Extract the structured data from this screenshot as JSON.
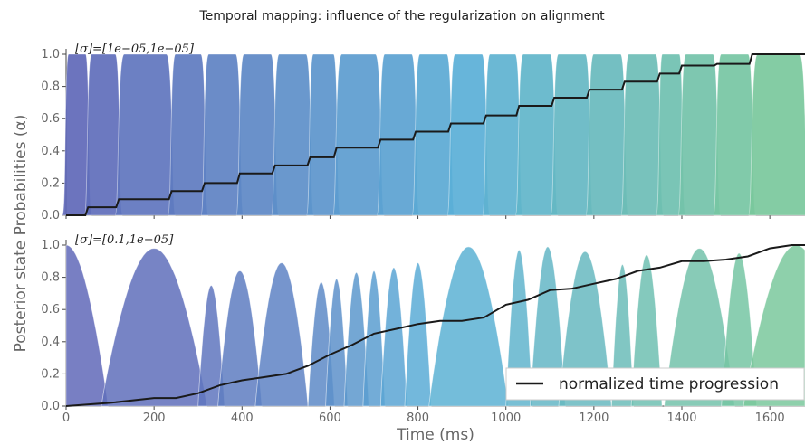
{
  "title": "Temporal mapping: influence of the regularization on alignment",
  "ylabel": "Posterior state Probabilities (α)",
  "xlabel": "Time (ms)",
  "legend": {
    "label": "normalized time progression"
  },
  "colors": {
    "progression_line": "#1a1a1a"
  },
  "chart_data": [
    {
      "type": "area",
      "annotation": "⌊σ⌋=[1e−05,1e−05]",
      "xlim": [
        0,
        1680
      ],
      "ylim": [
        0,
        1.0
      ],
      "yticks": [
        "0.0",
        "0.2",
        "0.4",
        "0.6",
        "0.8",
        "1.0"
      ],
      "xticks": [],
      "state_boundaries_ms": [
        0,
        50,
        120,
        240,
        315,
        395,
        475,
        555,
        615,
        715,
        795,
        875,
        955,
        1030,
        1110,
        1190,
        1270,
        1350,
        1400,
        1480,
        1560,
        1680
      ],
      "progression": {
        "name": "normalized time progression",
        "x": [
          0,
          50,
          120,
          240,
          315,
          395,
          475,
          555,
          615,
          715,
          795,
          875,
          955,
          1030,
          1110,
          1190,
          1270,
          1350,
          1400,
          1480,
          1560,
          1680
        ],
        "y": [
          0.0,
          0.05,
          0.1,
          0.15,
          0.2,
          0.26,
          0.31,
          0.36,
          0.42,
          0.47,
          0.52,
          0.57,
          0.62,
          0.68,
          0.73,
          0.78,
          0.83,
          0.88,
          0.93,
          0.94,
          1.0,
          1.0
        ]
      }
    },
    {
      "type": "area",
      "annotation": "⌊σ⌋=[0.1,1e−05]",
      "xlim": [
        0,
        1680
      ],
      "ylim": [
        0,
        1.0
      ],
      "yticks": [
        "0.0",
        "0.2",
        "0.4",
        "0.6",
        "0.8",
        "1.0"
      ],
      "xticks": [
        "0",
        "200",
        "400",
        "600",
        "800",
        "1000",
        "1200",
        "1400",
        "1600"
      ],
      "states": [
        {
          "center": 0,
          "halfwidth": 95,
          "peak": 1.0
        },
        {
          "center": 200,
          "halfwidth": 120,
          "peak": 0.98
        },
        {
          "center": 330,
          "halfwidth": 30,
          "peak": 0.75
        },
        {
          "center": 395,
          "halfwidth": 50,
          "peak": 0.84
        },
        {
          "center": 490,
          "halfwidth": 60,
          "peak": 0.89
        },
        {
          "center": 580,
          "halfwidth": 30,
          "peak": 0.77
        },
        {
          "center": 615,
          "halfwidth": 25,
          "peak": 0.79
        },
        {
          "center": 660,
          "halfwidth": 28,
          "peak": 0.83
        },
        {
          "center": 700,
          "halfwidth": 25,
          "peak": 0.84
        },
        {
          "center": 745,
          "halfwidth": 30,
          "peak": 0.86
        },
        {
          "center": 800,
          "halfwidth": 30,
          "peak": 0.89
        },
        {
          "center": 915,
          "halfwidth": 90,
          "peak": 0.99
        },
        {
          "center": 1030,
          "halfwidth": 30,
          "peak": 0.97
        },
        {
          "center": 1095,
          "halfwidth": 40,
          "peak": 0.99
        },
        {
          "center": 1180,
          "halfwidth": 60,
          "peak": 0.96
        },
        {
          "center": 1265,
          "halfwidth": 25,
          "peak": 0.88
        },
        {
          "center": 1320,
          "halfwidth": 35,
          "peak": 0.94
        },
        {
          "center": 1440,
          "halfwidth": 80,
          "peak": 0.98
        },
        {
          "center": 1530,
          "halfwidth": 40,
          "peak": 0.95
        },
        {
          "center": 1660,
          "halfwidth": 120,
          "peak": 1.0
        }
      ],
      "progression": {
        "name": "normalized time progression",
        "x": [
          0,
          100,
          200,
          250,
          300,
          350,
          400,
          450,
          500,
          550,
          600,
          650,
          700,
          750,
          800,
          850,
          900,
          950,
          1000,
          1050,
          1100,
          1150,
          1200,
          1250,
          1300,
          1350,
          1400,
          1450,
          1500,
          1550,
          1600,
          1650,
          1680
        ],
        "y": [
          0.0,
          0.02,
          0.05,
          0.05,
          0.08,
          0.13,
          0.16,
          0.18,
          0.2,
          0.25,
          0.32,
          0.38,
          0.45,
          0.48,
          0.51,
          0.53,
          0.53,
          0.55,
          0.63,
          0.66,
          0.72,
          0.73,
          0.76,
          0.79,
          0.84,
          0.86,
          0.9,
          0.9,
          0.91,
          0.93,
          0.98,
          1.0,
          1.0
        ]
      }
    }
  ]
}
